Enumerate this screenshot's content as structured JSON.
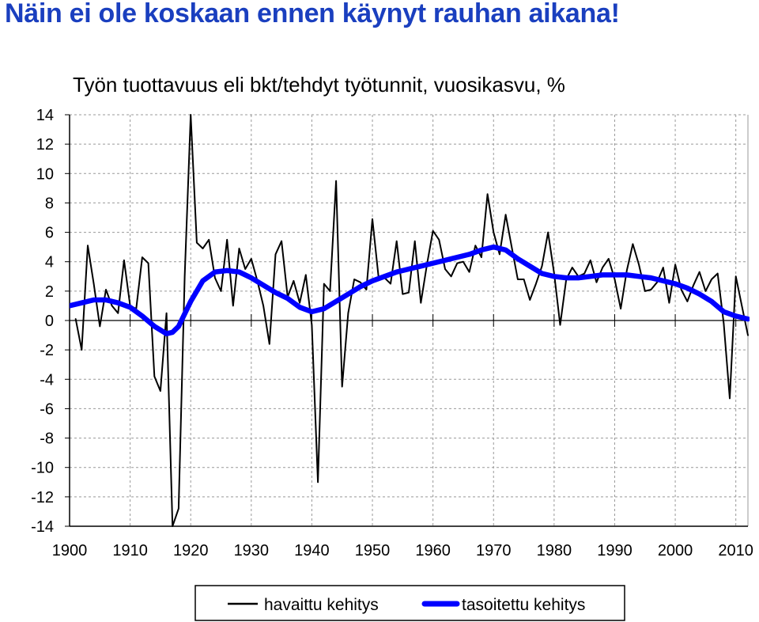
{
  "headline": "Näin ei ole koskaan ennen käynyt rauhan aikana!",
  "colors": {
    "headline": "#1a3fbf",
    "observed": "#000000",
    "smoothed": "#0000ff",
    "grid": "#999999"
  },
  "chart_data": {
    "type": "line",
    "title": "Työn tuottavuus eli bkt/tehdyt työtunnit, vuosikasvu, %",
    "xlabel": "",
    "ylabel": "",
    "xlim": [
      1900,
      2012
    ],
    "ylim": [
      -14,
      14
    ],
    "x_ticks": [
      "1900",
      "1910",
      "1920",
      "1930",
      "1940",
      "1950",
      "1960",
      "1970",
      "1980",
      "1990",
      "2000",
      "2010"
    ],
    "y_ticks": [
      "14",
      "12",
      "10",
      "8",
      "6",
      "4",
      "2",
      "0",
      "-2",
      "-4",
      "-6",
      "-8",
      "-10",
      "-12",
      "-14"
    ],
    "grid": true,
    "legend_position": "bottom-center",
    "series": [
      {
        "name": "havaittu kehitys",
        "style": "thin",
        "color": "#000000",
        "x": [
          1901,
          1902,
          1903,
          1904,
          1905,
          1906,
          1907,
          1908,
          1909,
          1910,
          1911,
          1912,
          1913,
          1914,
          1915,
          1916,
          1917,
          1918,
          1919,
          1920,
          1921,
          1922,
          1923,
          1924,
          1925,
          1926,
          1927,
          1928,
          1929,
          1930,
          1931,
          1932,
          1933,
          1934,
          1935,
          1936,
          1937,
          1938,
          1939,
          1940,
          1941,
          1942,
          1943,
          1944,
          1945,
          1946,
          1947,
          1948,
          1949,
          1950,
          1951,
          1952,
          1953,
          1954,
          1955,
          1956,
          1957,
          1958,
          1959,
          1960,
          1961,
          1962,
          1963,
          1964,
          1965,
          1966,
          1967,
          1968,
          1969,
          1970,
          1971,
          1972,
          1973,
          1974,
          1975,
          1976,
          1977,
          1978,
          1979,
          1980,
          1981,
          1982,
          1983,
          1984,
          1985,
          1986,
          1987,
          1988,
          1989,
          1990,
          1991,
          1992,
          1993,
          1994,
          1995,
          1996,
          1997,
          1998,
          1999,
          2000,
          2001,
          2002,
          2003,
          2004,
          2005,
          2006,
          2007,
          2008,
          2009,
          2010,
          2011,
          2012
        ],
        "y": [
          0.1,
          -2.0,
          5.1,
          2.5,
          -0.4,
          2.1,
          1.0,
          0.5,
          4.1,
          1.0,
          0.8,
          4.3,
          3.9,
          -3.8,
          -4.8,
          0.5,
          -14.0,
          -12.8,
          3.0,
          14.0,
          5.3,
          4.9,
          5.5,
          2.9,
          2.0,
          5.5,
          1.0,
          4.9,
          3.5,
          4.2,
          2.7,
          1.0,
          -1.6,
          4.5,
          5.4,
          1.6,
          2.7,
          1.2,
          3.1,
          -0.3,
          -11.0,
          2.5,
          2.0,
          9.5,
          -4.5,
          0.5,
          2.8,
          2.6,
          2.1,
          6.9,
          3.0,
          2.9,
          2.5,
          5.4,
          1.8,
          1.9,
          5.4,
          1.2,
          3.8,
          6.1,
          5.5,
          3.5,
          3.0,
          3.9,
          4.0,
          3.3,
          5.1,
          4.3,
          8.6,
          6.0,
          4.5,
          7.2,
          5.0,
          2.8,
          2.8,
          1.4,
          2.5,
          3.7,
          6.0,
          3.2,
          -0.3,
          2.8,
          3.6,
          3.0,
          3.2,
          4.1,
          2.6,
          3.6,
          4.2,
          2.8,
          0.8,
          3.4,
          5.2,
          3.8,
          2.0,
          2.1,
          2.6,
          3.6,
          1.2,
          3.8,
          2.1,
          1.3,
          2.4,
          3.3,
          2.0,
          2.8,
          3.2,
          -0.2,
          -5.3,
          3.0,
          1.0,
          -1.0
        ]
      },
      {
        "name": "tasoitettu kehitys",
        "style": "thick",
        "color": "#0000ff",
        "x": [
          1900,
          1902,
          1904,
          1906,
          1908,
          1910,
          1912,
          1914,
          1916,
          1917,
          1918,
          1920,
          1922,
          1924,
          1926,
          1928,
          1930,
          1932,
          1934,
          1936,
          1938,
          1940,
          1942,
          1944,
          1946,
          1948,
          1950,
          1952,
          1954,
          1956,
          1958,
          1960,
          1962,
          1964,
          1966,
          1968,
          1970,
          1972,
          1974,
          1976,
          1978,
          1980,
          1982,
          1984,
          1986,
          1988,
          1990,
          1992,
          1994,
          1996,
          1998,
          2000,
          2002,
          2004,
          2006,
          2008,
          2010,
          2012
        ],
        "y": [
          1.0,
          1.2,
          1.4,
          1.4,
          1.2,
          0.9,
          0.3,
          -0.4,
          -0.9,
          -0.8,
          -0.4,
          1.3,
          2.7,
          3.3,
          3.4,
          3.3,
          2.9,
          2.4,
          1.9,
          1.5,
          0.9,
          0.6,
          0.8,
          1.3,
          1.8,
          2.3,
          2.7,
          3.0,
          3.3,
          3.5,
          3.7,
          3.9,
          4.1,
          4.3,
          4.5,
          4.8,
          5.0,
          4.8,
          4.2,
          3.7,
          3.2,
          3.0,
          2.9,
          2.9,
          3.0,
          3.1,
          3.1,
          3.1,
          3.0,
          2.9,
          2.7,
          2.5,
          2.2,
          1.8,
          1.3,
          0.6,
          0.3,
          0.1
        ]
      }
    ]
  }
}
